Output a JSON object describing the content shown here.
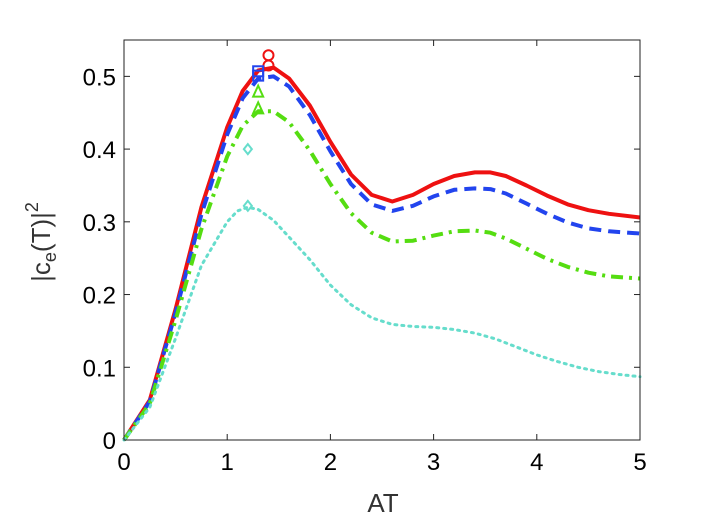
{
  "chart_data": {
    "type": "line",
    "title": "",
    "xlabel": "AT",
    "ylabel_parts": {
      "base": "|c",
      "sub": "e",
      "mid": "(T)|",
      "sup": "2"
    },
    "xlim": [
      0,
      5
    ],
    "ylim": [
      0,
      0.55
    ],
    "xticks": [
      "0",
      "1",
      "2",
      "3",
      "4",
      "5"
    ],
    "yticks": [
      "0",
      "0.1",
      "0.2",
      "0.3",
      "0.4",
      "0.5"
    ],
    "xtick_values": [
      0,
      1,
      2,
      3,
      4,
      5
    ],
    "ytick_values": [
      0,
      0.1,
      0.2,
      0.3,
      0.4,
      0.5
    ],
    "grid": false,
    "series": [
      {
        "color": "#ee1111",
        "style": "solid",
        "width": 4,
        "x": [
          0,
          0.25,
          0.5,
          0.75,
          1.0,
          1.15,
          1.3,
          1.45,
          1.6,
          1.8,
          2.0,
          2.2,
          2.4,
          2.6,
          2.8,
          3.0,
          3.2,
          3.4,
          3.55,
          3.7,
          3.9,
          4.1,
          4.3,
          4.5,
          4.7,
          5.0
        ],
        "y": [
          0,
          0.055,
          0.18,
          0.32,
          0.43,
          0.48,
          0.508,
          0.512,
          0.497,
          0.46,
          0.41,
          0.365,
          0.337,
          0.328,
          0.337,
          0.352,
          0.363,
          0.368,
          0.368,
          0.363,
          0.35,
          0.336,
          0.324,
          0.316,
          0.311,
          0.306
        ],
        "markers": {
          "shape": "circle",
          "x": [
            1.4,
            1.4
          ],
          "y": [
            0.529,
            0.515
          ]
        }
      },
      {
        "color": "#2244ee",
        "style": "dashed",
        "width": 4,
        "x": [
          0,
          0.25,
          0.5,
          0.75,
          1.0,
          1.15,
          1.3,
          1.45,
          1.6,
          1.8,
          2.0,
          2.2,
          2.4,
          2.6,
          2.8,
          3.0,
          3.2,
          3.4,
          3.55,
          3.7,
          3.9,
          4.1,
          4.3,
          4.5,
          4.7,
          5.0
        ],
        "y": [
          0,
          0.053,
          0.175,
          0.31,
          0.42,
          0.47,
          0.497,
          0.5,
          0.486,
          0.447,
          0.397,
          0.352,
          0.324,
          0.315,
          0.322,
          0.335,
          0.344,
          0.346,
          0.345,
          0.339,
          0.325,
          0.311,
          0.299,
          0.291,
          0.287,
          0.284
        ],
        "markers": {
          "shape": "square",
          "x": [
            1.3,
            1.3
          ],
          "y": [
            0.507,
            0.501
          ]
        }
      },
      {
        "color": "#55dd11",
        "style": "dashdot",
        "width": 4,
        "x": [
          0,
          0.25,
          0.5,
          0.75,
          1.0,
          1.15,
          1.3,
          1.45,
          1.6,
          1.8,
          2.0,
          2.2,
          2.4,
          2.6,
          2.8,
          3.0,
          3.2,
          3.4,
          3.55,
          3.7,
          3.9,
          4.1,
          4.3,
          4.5,
          4.7,
          5.0
        ],
        "y": [
          0,
          0.05,
          0.165,
          0.29,
          0.39,
          0.432,
          0.452,
          0.452,
          0.437,
          0.398,
          0.352,
          0.312,
          0.285,
          0.273,
          0.274,
          0.281,
          0.287,
          0.288,
          0.285,
          0.277,
          0.263,
          0.249,
          0.238,
          0.23,
          0.225,
          0.222
        ],
        "markers": {
          "shape": "triangle",
          "x": [
            1.3,
            1.3
          ],
          "y": [
            0.479,
            0.456
          ]
        }
      },
      {
        "color": "#66ddcc",
        "style": "dotted",
        "width": 3,
        "x": [
          0,
          0.25,
          0.5,
          0.75,
          1.0,
          1.1,
          1.2,
          1.3,
          1.45,
          1.6,
          1.8,
          2.0,
          2.2,
          2.4,
          2.6,
          2.8,
          3.0,
          3.2,
          3.4,
          3.6,
          3.8,
          4.0,
          4.2,
          4.4,
          4.6,
          4.8,
          5.0
        ],
        "y": [
          0,
          0.045,
          0.14,
          0.24,
          0.3,
          0.315,
          0.32,
          0.317,
          0.302,
          0.279,
          0.248,
          0.213,
          0.186,
          0.168,
          0.159,
          0.156,
          0.155,
          0.152,
          0.147,
          0.139,
          0.128,
          0.117,
          0.108,
          0.1,
          0.094,
          0.09,
          0.087
        ],
        "markers": {
          "shape": "diamond",
          "x": [
            1.2,
            1.2
          ],
          "y": [
            0.4,
            0.322
          ]
        }
      }
    ]
  }
}
